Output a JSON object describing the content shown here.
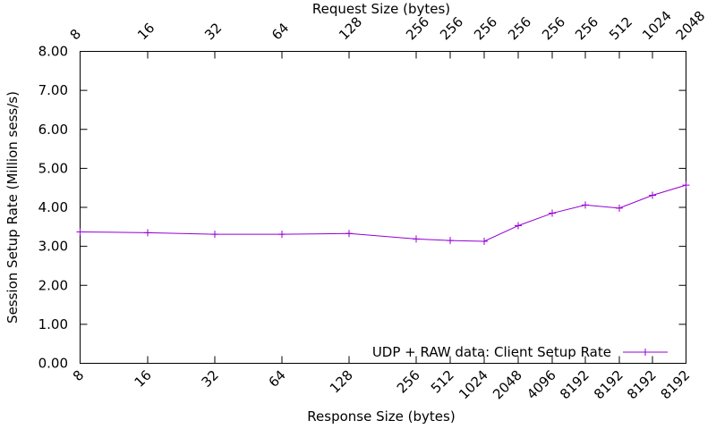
{
  "chart_data": {
    "type": "line",
    "xlabel": "Response Size (bytes)",
    "x2label": "Request Size (bytes)",
    "ylabel": "Session Setup Rate (Million sess/s)",
    "ylim": [
      0,
      8
    ],
    "yticks": [
      "0.00",
      "1.00",
      "2.00",
      "3.00",
      "4.00",
      "5.00",
      "6.00",
      "7.00",
      "8.00"
    ],
    "bottom_tick_labels": [
      "8",
      "16",
      "32",
      "64",
      "128",
      "256",
      "512",
      "1024",
      "2048",
      "4096",
      "8192",
      "8192",
      "8192",
      "8192"
    ],
    "top_tick_labels": [
      "8",
      "16",
      "32",
      "64",
      "128",
      "256",
      "256",
      "256",
      "256",
      "256",
      "256",
      "512",
      "1024",
      "2048"
    ],
    "grid": false,
    "legend_position": "bottom-right",
    "series": [
      {
        "name": "UDP + RAW data: Client Setup Rate",
        "color": "#9400d3",
        "values": [
          3.37,
          3.35,
          3.31,
          3.31,
          3.33,
          3.19,
          3.15,
          3.13,
          3.53,
          3.85,
          4.06,
          3.98,
          4.31,
          4.57
        ]
      }
    ]
  }
}
